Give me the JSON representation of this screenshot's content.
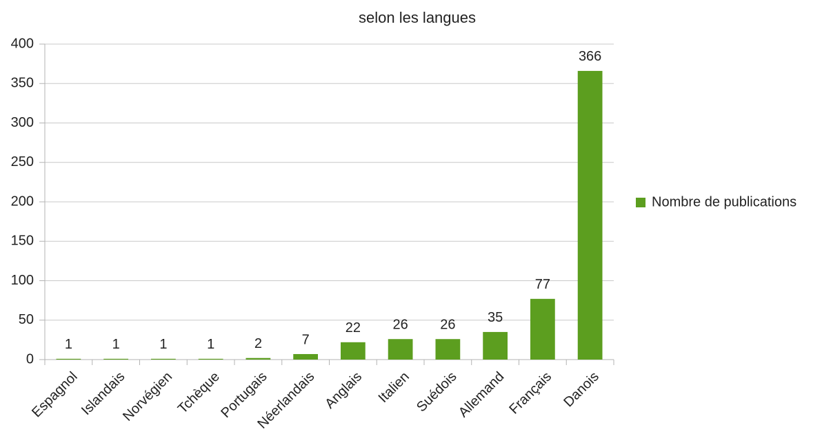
{
  "chart_data": {
    "type": "bar",
    "title": "selon les langues",
    "categories": [
      "Espagnol",
      "Islandais",
      "Norvégien",
      "Tchèque",
      "Portugais",
      "Néerlandais",
      "Anglais",
      "Italien",
      "Suédois",
      "Allemand",
      "Français",
      "Danois"
    ],
    "series": [
      {
        "name": "Nombre de publications",
        "color": "#5c9e1f",
        "values": [
          1,
          1,
          1,
          1,
          2,
          7,
          22,
          26,
          26,
          35,
          77,
          366
        ]
      }
    ],
    "ylim": [
      0,
      400
    ],
    "yticks": [
      0,
      50,
      100,
      150,
      200,
      250,
      300,
      350,
      400
    ],
    "grid": true,
    "legend": "right"
  }
}
